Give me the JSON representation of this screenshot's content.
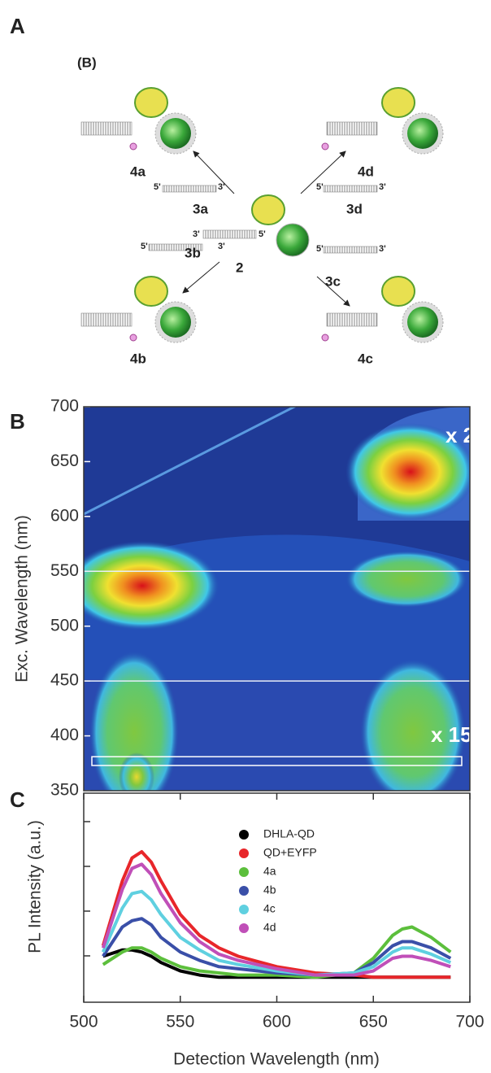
{
  "panel_labels": [
    "A",
    "B",
    "C"
  ],
  "diagram": {
    "labels": [
      "(B)",
      "4a",
      "4d",
      "3a",
      "3d",
      "2",
      "3b",
      "3c",
      "4b",
      "4c",
      "5'",
      "3'",
      "5'",
      "3'",
      "3'",
      "5'",
      "5'",
      "3'",
      "5'",
      "3'"
    ]
  },
  "chart_data": [
    {
      "type": "heatmap",
      "ylabel": "Exc. Wavelength (nm)",
      "ylim": [
        350,
        700
      ],
      "yticks": [
        350,
        400,
        450,
        500,
        550,
        600,
        650,
        700
      ],
      "separators": [
        550,
        450
      ],
      "box_y": [
        373,
        381
      ],
      "annotations": [
        "x 2",
        "x 15"
      ]
    },
    {
      "type": "line",
      "xlabel": "Detection Wavelength (nm)",
      "ylabel": "PL Intensity (a.u.)",
      "xlim": [
        500,
        700
      ],
      "xticks": [
        500,
        550,
        600,
        650,
        700
      ],
      "ylim": [
        0,
        1
      ],
      "x": [
        510,
        520,
        525,
        530,
        535,
        540,
        550,
        560,
        570,
        580,
        600,
        620,
        640,
        650,
        660,
        665,
        670,
        680,
        690
      ],
      "series": [
        {
          "name": "DHLA-QD",
          "color": "#000000",
          "values": [
            0.22,
            0.25,
            0.25,
            0.24,
            0.22,
            0.19,
            0.15,
            0.13,
            0.12,
            0.12,
            0.12,
            0.12,
            0.12,
            0.12,
            0.12,
            0.12,
            0.12,
            0.12,
            0.12
          ]
        },
        {
          "name": "QD+EYFP",
          "color": "#e8262a",
          "values": [
            0.27,
            0.58,
            0.69,
            0.72,
            0.67,
            0.58,
            0.42,
            0.32,
            0.26,
            0.22,
            0.17,
            0.14,
            0.13,
            0.12,
            0.12,
            0.12,
            0.12,
            0.12,
            0.12
          ]
        },
        {
          "name": "4a",
          "color": "#5cbf3c",
          "values": [
            0.18,
            0.24,
            0.26,
            0.26,
            0.24,
            0.21,
            0.17,
            0.15,
            0.14,
            0.13,
            0.13,
            0.12,
            0.14,
            0.21,
            0.32,
            0.35,
            0.36,
            0.31,
            0.24
          ]
        },
        {
          "name": "4b",
          "color": "#3a4fa8",
          "values": [
            0.22,
            0.36,
            0.39,
            0.4,
            0.37,
            0.31,
            0.24,
            0.2,
            0.17,
            0.16,
            0.14,
            0.13,
            0.14,
            0.19,
            0.27,
            0.29,
            0.29,
            0.26,
            0.21
          ]
        },
        {
          "name": "4c",
          "color": "#5fd0e0",
          "values": [
            0.24,
            0.45,
            0.52,
            0.53,
            0.49,
            0.42,
            0.31,
            0.25,
            0.2,
            0.18,
            0.15,
            0.13,
            0.14,
            0.17,
            0.24,
            0.26,
            0.26,
            0.23,
            0.19
          ]
        },
        {
          "name": "4d",
          "color": "#c04fb8",
          "values": [
            0.26,
            0.54,
            0.64,
            0.66,
            0.61,
            0.52,
            0.38,
            0.29,
            0.23,
            0.2,
            0.16,
            0.13,
            0.13,
            0.15,
            0.21,
            0.22,
            0.22,
            0.2,
            0.17
          ]
        }
      ]
    }
  ]
}
